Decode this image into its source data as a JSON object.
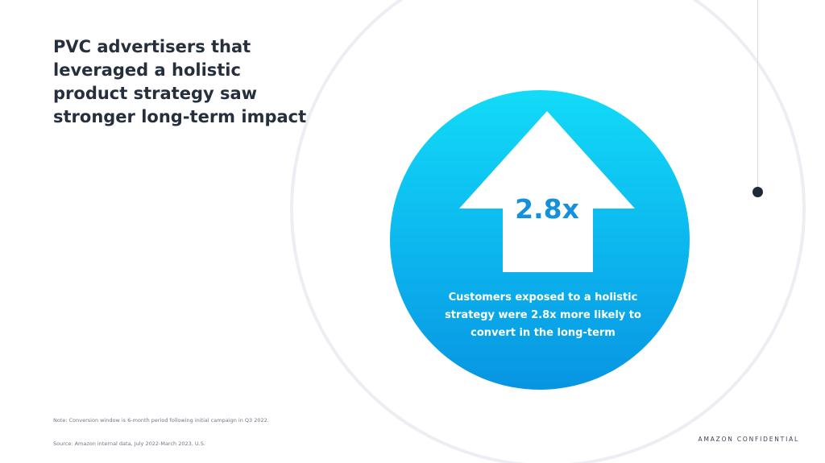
{
  "slide": {
    "headline": "PVC advertisers that leveraged a holistic product strategy saw stronger long-term impact",
    "stat": {
      "value": "2.8x",
      "caption": "Customers exposed to a holistic strategy were 2.8x more likely to convert in the long-term",
      "icon": "up-arrow-icon"
    },
    "footer": {
      "note": "Note: Conversion window is 6-month period following initial campaign in Q3 2022.",
      "source": "Source: Amazon internal data, July 2022-March 2023, U.S.",
      "confidential": "AMAZON CONFIDENTIAL"
    },
    "colors": {
      "headline_text": "#26303d",
      "circle_gradient_top": "#12dbf7",
      "circle_gradient_bottom": "#0895e2",
      "multiplier_text": "#1391dc",
      "timeline_dot": "#1f2a38"
    }
  }
}
